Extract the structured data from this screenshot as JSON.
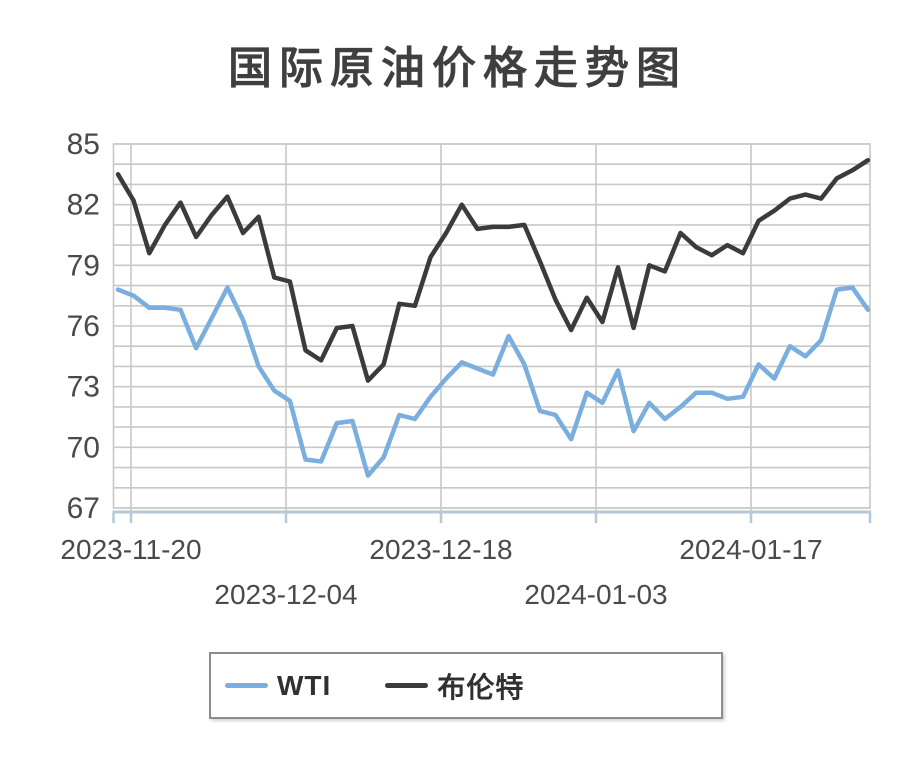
{
  "page": {
    "background": "#ffffff"
  },
  "chart": {
    "title": "国际原油价格走势图"
  },
  "legend": {
    "items": [
      {
        "label": "WTI",
        "color": "#7aaede"
      },
      {
        "label": "布伦特",
        "color": "#3b3b3b"
      }
    ]
  },
  "chart_data": {
    "type": "line",
    "title": "国际原油价格走势图",
    "x_tick_labels": [
      {
        "label": "2023-11-20",
        "index": 0,
        "row": 0
      },
      {
        "label": "2023-12-04",
        "index": 10,
        "row": 1
      },
      {
        "label": "2023-12-18",
        "index": 20,
        "row": 0
      },
      {
        "label": "2024-01-03",
        "index": 30,
        "row": 1
      },
      {
        "label": "2024-01-17",
        "index": 40,
        "row": 0
      }
    ],
    "y_ticks_labeled": [
      85,
      82,
      79,
      76,
      73,
      70,
      67
    ],
    "y_grid_step": 1,
    "ylim": [
      66.8,
      85
    ],
    "x_count": 49,
    "grid": true,
    "legend_position": "bottom",
    "colors": {
      "grid": "#c8c8c8",
      "axis": "#b3c9d9",
      "tick_text": "#4a4a4a"
    },
    "series": [
      {
        "name": "WTI",
        "color": "#7aaede",
        "values": [
          77.8,
          77.5,
          76.9,
          76.9,
          76.8,
          74.9,
          76.4,
          77.9,
          76.3,
          74.0,
          72.8,
          72.3,
          69.4,
          69.3,
          71.2,
          71.3,
          68.6,
          69.5,
          71.6,
          71.4,
          72.5,
          73.4,
          74.2,
          73.9,
          73.6,
          75.5,
          74.1,
          71.8,
          71.6,
          70.4,
          72.7,
          72.2,
          73.8,
          70.8,
          72.2,
          71.4,
          72.0,
          72.7,
          72.7,
          72.4,
          72.5,
          74.1,
          73.4,
          75.0,
          74.5,
          75.3,
          77.8,
          77.9,
          76.8
        ]
      },
      {
        "name": "布伦特",
        "color": "#3b3b3b",
        "values": [
          83.5,
          82.2,
          79.6,
          81.0,
          82.1,
          80.4,
          81.5,
          82.4,
          80.6,
          81.4,
          78.4,
          78.2,
          74.8,
          74.3,
          75.9,
          76.0,
          73.3,
          74.1,
          77.1,
          77.0,
          79.4,
          80.6,
          82.0,
          80.8,
          80.9,
          80.9,
          81.0,
          79.2,
          77.3,
          75.8,
          77.4,
          76.2,
          78.9,
          75.9,
          79.0,
          78.7,
          80.6,
          79.9,
          79.5,
          80.0,
          79.6,
          81.2,
          81.7,
          82.3,
          82.5,
          82.3,
          83.3,
          83.7,
          84.2
        ]
      }
    ]
  }
}
